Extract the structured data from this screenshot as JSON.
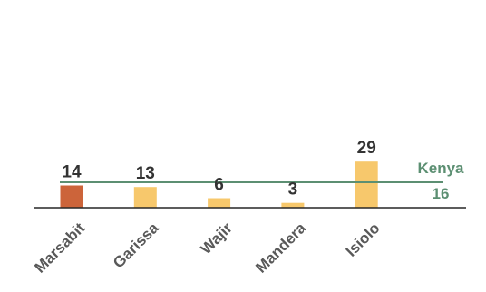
{
  "chart_data": {
    "type": "bar",
    "categories": [
      "Marsabit",
      "Garissa",
      "Wajir",
      "Mandera",
      "Isiolo"
    ],
    "values": [
      14,
      13,
      6,
      3,
      29
    ],
    "bar_colors": [
      "#cc643a",
      "#f7c86c",
      "#f7c86c",
      "#f7c86c",
      "#f7c86c"
    ],
    "reference_line": {
      "name": "Kenya",
      "value": 16,
      "value_label": "16",
      "color": "#5c8f72"
    },
    "title": "",
    "xlabel": "",
    "ylabel": "",
    "ylim": [
      0,
      125
    ],
    "grid": false,
    "legend": "none",
    "axis_color": "#262626",
    "label_color": "#333333",
    "tick_color": "#595959"
  }
}
